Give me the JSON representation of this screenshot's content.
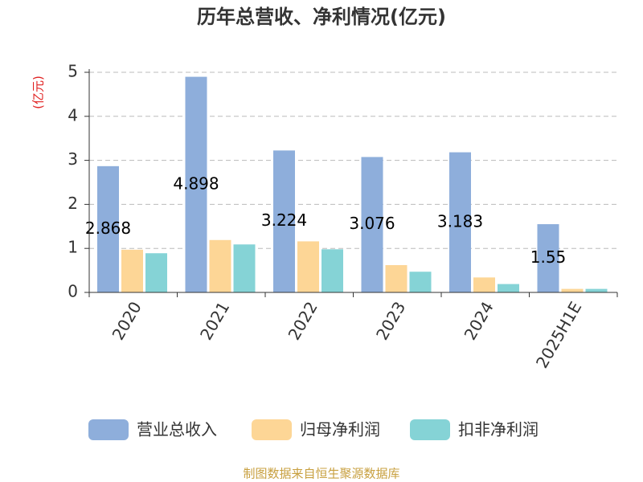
{
  "chart_data": {
    "type": "bar",
    "title": "历年总营收、净利情况(亿元)",
    "y_axis_label": "(亿元)",
    "categories": [
      "2020",
      "2021",
      "2022",
      "2023",
      "2024",
      "2025H1E"
    ],
    "series": [
      {
        "name": "营业总收入",
        "color": "#8eaedb",
        "values": [
          2.868,
          4.898,
          3.224,
          3.076,
          3.183,
          1.55
        ]
      },
      {
        "name": "归母净利润",
        "color": "#fdd696",
        "values": [
          0.97,
          1.19,
          1.16,
          0.62,
          0.34,
          0.08
        ]
      },
      {
        "name": "扣非净利润",
        "color": "#85d3d6",
        "values": [
          0.89,
          1.09,
          0.98,
          0.47,
          0.19,
          0.08
        ]
      }
    ],
    "ylim": [
      0,
      5
    ],
    "yticks": [
      0,
      1,
      2,
      3,
      4,
      5
    ],
    "grid": true,
    "source": "制图数据来自恒生聚源数据库"
  }
}
